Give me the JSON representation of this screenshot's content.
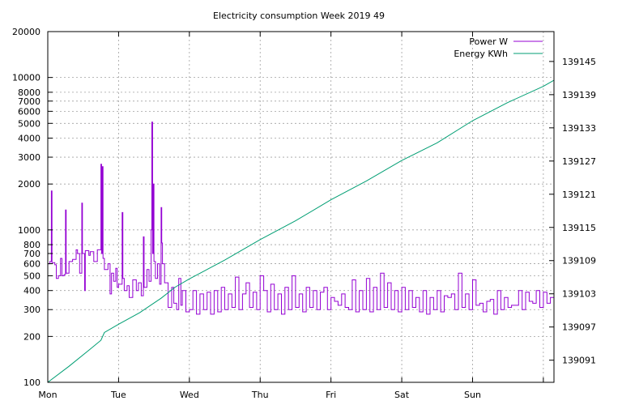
{
  "chart_data": {
    "type": "line",
    "title": "Electricity consumption Week 2019 49",
    "x_categories": [
      "Mon",
      "Tue",
      "Wed",
      "Thu",
      "Fri",
      "Sat",
      "Sun"
    ],
    "x_range_days": [
      0,
      7.15
    ],
    "y_left": {
      "scale": "log",
      "range": [
        100,
        20000
      ],
      "tick_values": [
        100,
        200,
        300,
        400,
        500,
        600,
        700,
        800,
        1000,
        2000,
        3000,
        4000,
        5000,
        6000,
        7000,
        8000,
        10000,
        20000
      ],
      "tick_labels": [
        "100",
        "200",
        "300",
        "400",
        "500",
        "600",
        "700",
        "800",
        "1000",
        "2000",
        "3000",
        "4000",
        "5000",
        "6000",
        "7000",
        "8000",
        "10000",
        "20000"
      ]
    },
    "y_right": {
      "scale": "linear",
      "range": [
        139087.0,
        139150.4
      ],
      "tick_values": [
        139091,
        139097,
        139103,
        139109,
        139115,
        139121,
        139127,
        139133,
        139139,
        139145
      ],
      "tick_labels": [
        "139091",
        "139097",
        "139103",
        "139109",
        "139115",
        "139121",
        "139127",
        "139133",
        "139139",
        "139145"
      ]
    },
    "grid": true,
    "legend": "top-right",
    "series": [
      {
        "name": "Power W",
        "axis": "left",
        "color": "#9400d3",
        "points": [
          [
            0.0,
            600
          ],
          [
            0.03,
            620
          ],
          [
            0.05,
            1800
          ],
          [
            0.06,
            610
          ],
          [
            0.1,
            590
          ],
          [
            0.12,
            480
          ],
          [
            0.15,
            500
          ],
          [
            0.18,
            650
          ],
          [
            0.2,
            500
          ],
          [
            0.23,
            510
          ],
          [
            0.25,
            1350
          ],
          [
            0.26,
            520
          ],
          [
            0.3,
            620
          ],
          [
            0.35,
            640
          ],
          [
            0.4,
            740
          ],
          [
            0.42,
            700
          ],
          [
            0.45,
            520
          ],
          [
            0.48,
            1500
          ],
          [
            0.49,
            700
          ],
          [
            0.52,
            400
          ],
          [
            0.53,
            730
          ],
          [
            0.58,
            680
          ],
          [
            0.6,
            720
          ],
          [
            0.65,
            620
          ],
          [
            0.7,
            740
          ],
          [
            0.75,
            2700
          ],
          [
            0.76,
            700
          ],
          [
            0.77,
            2600
          ],
          [
            0.78,
            650
          ],
          [
            0.8,
            550
          ],
          [
            0.85,
            600
          ],
          [
            0.88,
            380
          ],
          [
            0.9,
            520
          ],
          [
            0.93,
            460
          ],
          [
            0.96,
            560
          ],
          [
            0.98,
            420
          ],
          [
            1.0,
            440
          ],
          [
            1.05,
            1300
          ],
          [
            1.06,
            480
          ],
          [
            1.08,
            400
          ],
          [
            1.12,
            430
          ],
          [
            1.15,
            360
          ],
          [
            1.2,
            470
          ],
          [
            1.25,
            400
          ],
          [
            1.28,
            450
          ],
          [
            1.32,
            370
          ],
          [
            1.35,
            900
          ],
          [
            1.36,
            420
          ],
          [
            1.4,
            550
          ],
          [
            1.43,
            460
          ],
          [
            1.46,
            1000
          ],
          [
            1.47,
            5100
          ],
          [
            1.48,
            700
          ],
          [
            1.49,
            2000
          ],
          [
            1.5,
            620
          ],
          [
            1.52,
            480
          ],
          [
            1.55,
            600
          ],
          [
            1.58,
            440
          ],
          [
            1.6,
            1400
          ],
          [
            1.61,
            820
          ],
          [
            1.62,
            600
          ],
          [
            1.65,
            450
          ],
          [
            1.7,
            310
          ],
          [
            1.75,
            420
          ],
          [
            1.78,
            330
          ],
          [
            1.82,
            300
          ],
          [
            1.85,
            480
          ],
          [
            1.88,
            320
          ],
          [
            1.9,
            400
          ],
          [
            1.95,
            290
          ],
          [
            2.0,
            300
          ],
          [
            2.05,
            400
          ],
          [
            2.1,
            280
          ],
          [
            2.15,
            380
          ],
          [
            2.2,
            300
          ],
          [
            2.25,
            390
          ],
          [
            2.3,
            280
          ],
          [
            2.35,
            400
          ],
          [
            2.4,
            290
          ],
          [
            2.45,
            420
          ],
          [
            2.5,
            300
          ],
          [
            2.55,
            380
          ],
          [
            2.6,
            310
          ],
          [
            2.65,
            490
          ],
          [
            2.7,
            300
          ],
          [
            2.75,
            380
          ],
          [
            2.8,
            450
          ],
          [
            2.85,
            310
          ],
          [
            2.9,
            390
          ],
          [
            2.95,
            300
          ],
          [
            3.0,
            500
          ],
          [
            3.05,
            400
          ],
          [
            3.1,
            290
          ],
          [
            3.15,
            440
          ],
          [
            3.2,
            300
          ],
          [
            3.25,
            380
          ],
          [
            3.3,
            280
          ],
          [
            3.35,
            420
          ],
          [
            3.4,
            300
          ],
          [
            3.45,
            500
          ],
          [
            3.5,
            310
          ],
          [
            3.55,
            380
          ],
          [
            3.6,
            290
          ],
          [
            3.65,
            420
          ],
          [
            3.7,
            310
          ],
          [
            3.75,
            400
          ],
          [
            3.8,
            300
          ],
          [
            3.85,
            390
          ],
          [
            3.9,
            420
          ],
          [
            3.95,
            300
          ],
          [
            4.0,
            360
          ],
          [
            4.05,
            340
          ],
          [
            4.1,
            320
          ],
          [
            4.15,
            380
          ],
          [
            4.2,
            310
          ],
          [
            4.25,
            300
          ],
          [
            4.3,
            470
          ],
          [
            4.35,
            290
          ],
          [
            4.4,
            400
          ],
          [
            4.45,
            300
          ],
          [
            4.5,
            480
          ],
          [
            4.55,
            290
          ],
          [
            4.6,
            420
          ],
          [
            4.65,
            300
          ],
          [
            4.7,
            520
          ],
          [
            4.75,
            310
          ],
          [
            4.8,
            450
          ],
          [
            4.85,
            300
          ],
          [
            4.9,
            400
          ],
          [
            4.95,
            290
          ],
          [
            5.0,
            420
          ],
          [
            5.05,
            300
          ],
          [
            5.1,
            400
          ],
          [
            5.15,
            310
          ],
          [
            5.2,
            360
          ],
          [
            5.25,
            290
          ],
          [
            5.3,
            400
          ],
          [
            5.35,
            280
          ],
          [
            5.4,
            360
          ],
          [
            5.45,
            300
          ],
          [
            5.5,
            400
          ],
          [
            5.55,
            290
          ],
          [
            5.6,
            370
          ],
          [
            5.65,
            360
          ],
          [
            5.7,
            380
          ],
          [
            5.75,
            300
          ],
          [
            5.8,
            520
          ],
          [
            5.85,
            310
          ],
          [
            5.9,
            380
          ],
          [
            5.95,
            300
          ],
          [
            6.0,
            470
          ],
          [
            6.05,
            320
          ],
          [
            6.1,
            330
          ],
          [
            6.15,
            290
          ],
          [
            6.2,
            340
          ],
          [
            6.25,
            350
          ],
          [
            6.3,
            280
          ],
          [
            6.35,
            400
          ],
          [
            6.4,
            300
          ],
          [
            6.45,
            360
          ],
          [
            6.5,
            310
          ],
          [
            6.55,
            320
          ],
          [
            6.6,
            320
          ],
          [
            6.65,
            400
          ],
          [
            6.7,
            300
          ],
          [
            6.75,
            390
          ],
          [
            6.8,
            340
          ],
          [
            6.85,
            330
          ],
          [
            6.9,
            400
          ],
          [
            6.95,
            310
          ],
          [
            7.0,
            390
          ],
          [
            7.05,
            330
          ],
          [
            7.1,
            360
          ],
          [
            7.15,
            340
          ]
        ]
      },
      {
        "name": "Energy KWh",
        "axis": "right",
        "color": "#009e73",
        "points": [
          [
            0.0,
            139087.0
          ],
          [
            0.3,
            139089.9
          ],
          [
            0.6,
            139093.0
          ],
          [
            0.75,
            139094.6
          ],
          [
            0.8,
            139096.0
          ],
          [
            1.0,
            139097.5
          ],
          [
            1.3,
            139099.6
          ],
          [
            1.6,
            139102.2
          ],
          [
            1.8,
            139104.2
          ],
          [
            2.0,
            139105.7
          ],
          [
            2.5,
            139109.1
          ],
          [
            3.0,
            139112.8
          ],
          [
            3.5,
            139116.2
          ],
          [
            4.0,
            139120.0
          ],
          [
            4.5,
            139123.4
          ],
          [
            5.0,
            139127.1
          ],
          [
            5.5,
            139130.3
          ],
          [
            6.0,
            139134.3
          ],
          [
            6.5,
            139137.6
          ],
          [
            7.0,
            139140.5
          ],
          [
            7.15,
            139141.6
          ]
        ]
      }
    ]
  }
}
